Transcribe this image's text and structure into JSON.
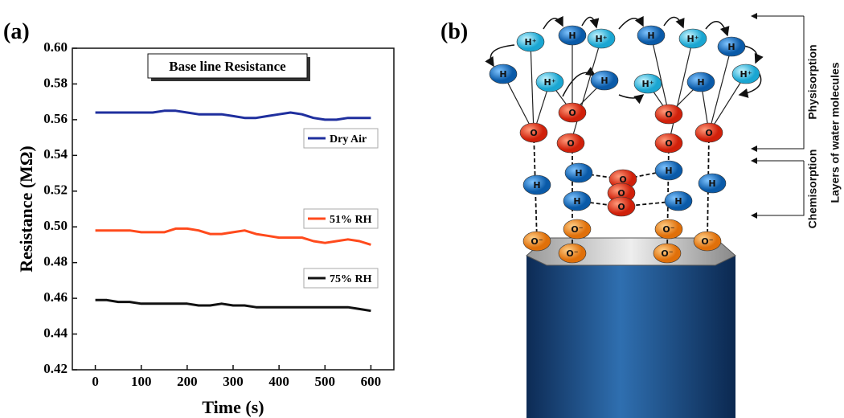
{
  "chart_data": {
    "type": "line",
    "title": "Base line Resistance",
    "x_label": "Time (s)",
    "y_label": "Resistance (MΩ)",
    "x": [
      0,
      25,
      50,
      75,
      100,
      125,
      150,
      175,
      200,
      225,
      250,
      275,
      300,
      325,
      350,
      375,
      400,
      425,
      450,
      475,
      500,
      525,
      550,
      575,
      600
    ],
    "series": [
      {
        "name": "Dry Air",
        "color": "#1f2f9e",
        "values": [
          0.564,
          0.564,
          0.564,
          0.564,
          0.564,
          0.564,
          0.565,
          0.565,
          0.564,
          0.563,
          0.563,
          0.563,
          0.562,
          0.561,
          0.561,
          0.562,
          0.563,
          0.564,
          0.563,
          0.561,
          0.56,
          0.56,
          0.561,
          0.561,
          0.561
        ]
      },
      {
        "name": "51% RH",
        "color": "#ff4a1c",
        "values": [
          0.498,
          0.498,
          0.498,
          0.498,
          0.497,
          0.497,
          0.497,
          0.499,
          0.499,
          0.498,
          0.496,
          0.496,
          0.497,
          0.498,
          0.496,
          0.495,
          0.494,
          0.494,
          0.494,
          0.492,
          0.491,
          0.492,
          0.493,
          0.492,
          0.49
        ]
      },
      {
        "name": "75% RH",
        "color": "#111111",
        "values": [
          0.459,
          0.459,
          0.458,
          0.458,
          0.457,
          0.457,
          0.457,
          0.457,
          0.457,
          0.456,
          0.456,
          0.457,
          0.456,
          0.456,
          0.455,
          0.455,
          0.455,
          0.455,
          0.455,
          0.455,
          0.455,
          0.455,
          0.455,
          0.454,
          0.453
        ]
      }
    ],
    "xlim": [
      -50,
      650
    ],
    "xticks": [
      0,
      100,
      200,
      300,
      400,
      500,
      600
    ],
    "ylim": [
      0.42,
      0.6
    ],
    "yticks": [
      0.42,
      0.44,
      0.46,
      0.48,
      {
        "value": 0.5,
        "label": "0.50"
      },
      0.52,
      0.54,
      0.56,
      0.58,
      {
        "value": 0.6,
        "label": "0.60"
      }
    ],
    "grid": false
  },
  "panel_labels": [
    "(a)",
    "(b)"
  ],
  "diagram": {
    "hydrogen": "H",
    "proton": "H⁺",
    "oxygen": "O",
    "oxide": "O⁻",
    "physisorption": "Physisorption",
    "chemisorption": "Chemisorption",
    "layers": "Layers of water molecules"
  }
}
